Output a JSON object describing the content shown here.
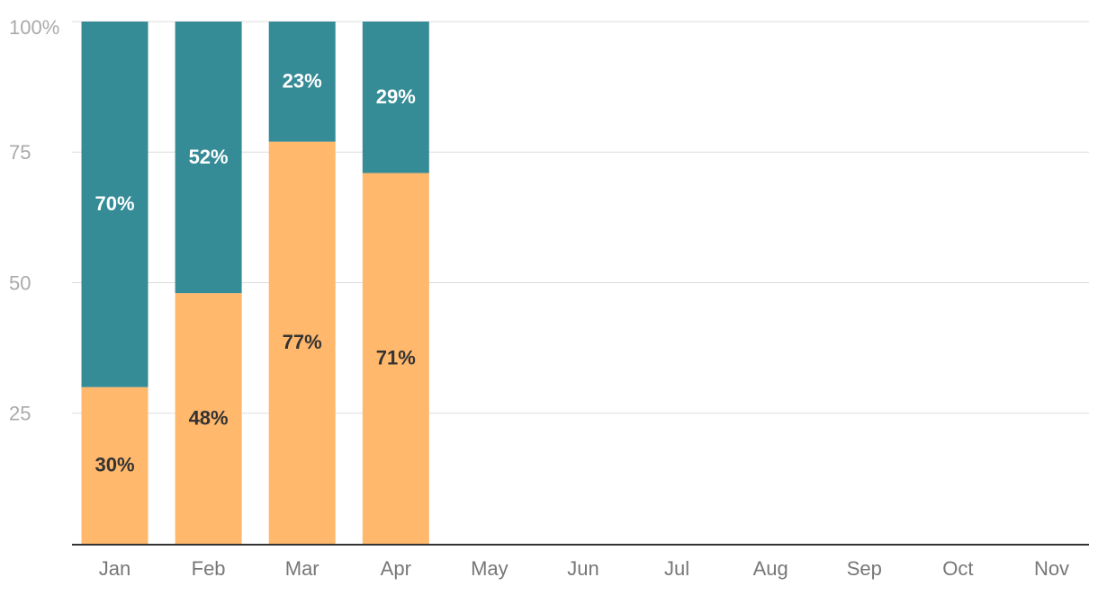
{
  "chart_data": {
    "type": "bar",
    "stacked": true,
    "categories": [
      "Jan",
      "Feb",
      "Mar",
      "Apr",
      "May",
      "Jun",
      "Jul",
      "Aug",
      "Sep",
      "Oct",
      "Nov"
    ],
    "series": [
      {
        "color": "#FFB86C",
        "label_color": "#333333",
        "values": [
          30,
          48,
          77,
          71,
          null,
          null,
          null,
          null,
          null,
          null,
          null
        ],
        "labels": [
          "30%",
          "48%",
          "77%",
          "71%",
          "",
          "",
          "",
          "",
          "",
          "",
          ""
        ]
      },
      {
        "color": "#358B96",
        "label_color": "#ffffff",
        "values": [
          70,
          52,
          23,
          29,
          null,
          null,
          null,
          null,
          null,
          null,
          null
        ],
        "labels": [
          "70%",
          "52%",
          "23%",
          "29%",
          "",
          "",
          "",
          "",
          "",
          "",
          ""
        ]
      }
    ],
    "ylim": [
      0,
      100
    ],
    "yticks": [
      25,
      50,
      75,
      100
    ],
    "ytick_labels": [
      "25",
      "50",
      "75",
      "100%"
    ],
    "grid": true,
    "title": "",
    "xlabel": "",
    "ylabel": ""
  }
}
